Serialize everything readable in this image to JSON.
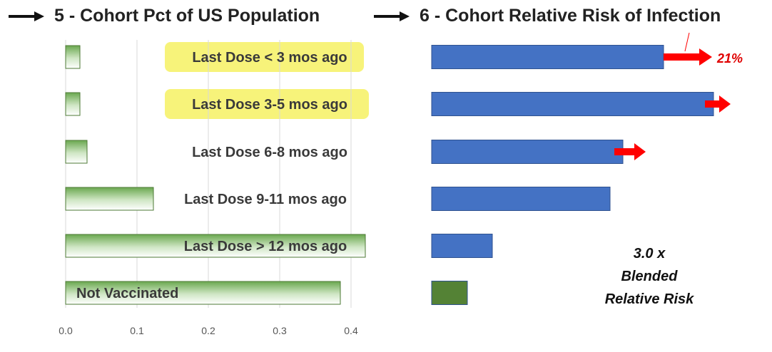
{
  "chart_data": [
    {
      "type": "bar",
      "title": "5 - Cohort Pct of US Population",
      "categories": [
        "Last Dose < 3 mos ago",
        "Last Dose 3-5 mos ago",
        "Last Dose 6-8 mos ago",
        "Last Dose 9-11 mos ago",
        "Last Dose > 12 mos ago",
        "Not Vaccinated"
      ],
      "values": [
        0.02,
        0.02,
        0.03,
        0.123,
        0.42,
        0.385
      ],
      "highlighted": [
        "Last Dose < 3 mos ago",
        "Last Dose 3-5 mos ago"
      ],
      "highlight_color": "#f7f37a",
      "bar_color": "#70ad47",
      "xlim": [
        0,
        0.4
      ],
      "xticks": [
        "0.0",
        "0.1",
        "0.2",
        "0.3",
        "0.4"
      ],
      "grid": true
    },
    {
      "type": "bar",
      "title": "6 - Cohort Relative Risk of Infection",
      "categories": [
        "Last Dose < 3 mos ago",
        "Last Dose 3-5 mos ago",
        "Last Dose 6-8 mos ago",
        "Last Dose 9-11 mos ago",
        "Last Dose > 12 mos ago",
        "Not Vaccinated"
      ],
      "values": [
        3.25,
        3.95,
        2.68,
        2.5,
        0.85,
        0.5
      ],
      "bar_colors": [
        "#4472c4",
        "#4472c4",
        "#4472c4",
        "#4472c4",
        "#4472c4",
        "#548235"
      ],
      "arrows_on": [
        "Last Dose < 3 mos ago",
        "Last Dose 3-5 mos ago",
        "Last Dose 6-8 mos ago"
      ],
      "arrow_color": "#ff0000",
      "annotation_pct": "21%",
      "note_lines": [
        "3.0 x",
        "Blended",
        "Relative Risk"
      ]
    }
  ],
  "colors": {
    "title_arrow": "#111111",
    "label_text": "#3a3a3a",
    "grid": "#d9d9d9",
    "tick": "#555555"
  },
  "icons": {
    "title_arrow": "right-arrow-icon",
    "bar_arrow": "red-arrow-icon"
  }
}
